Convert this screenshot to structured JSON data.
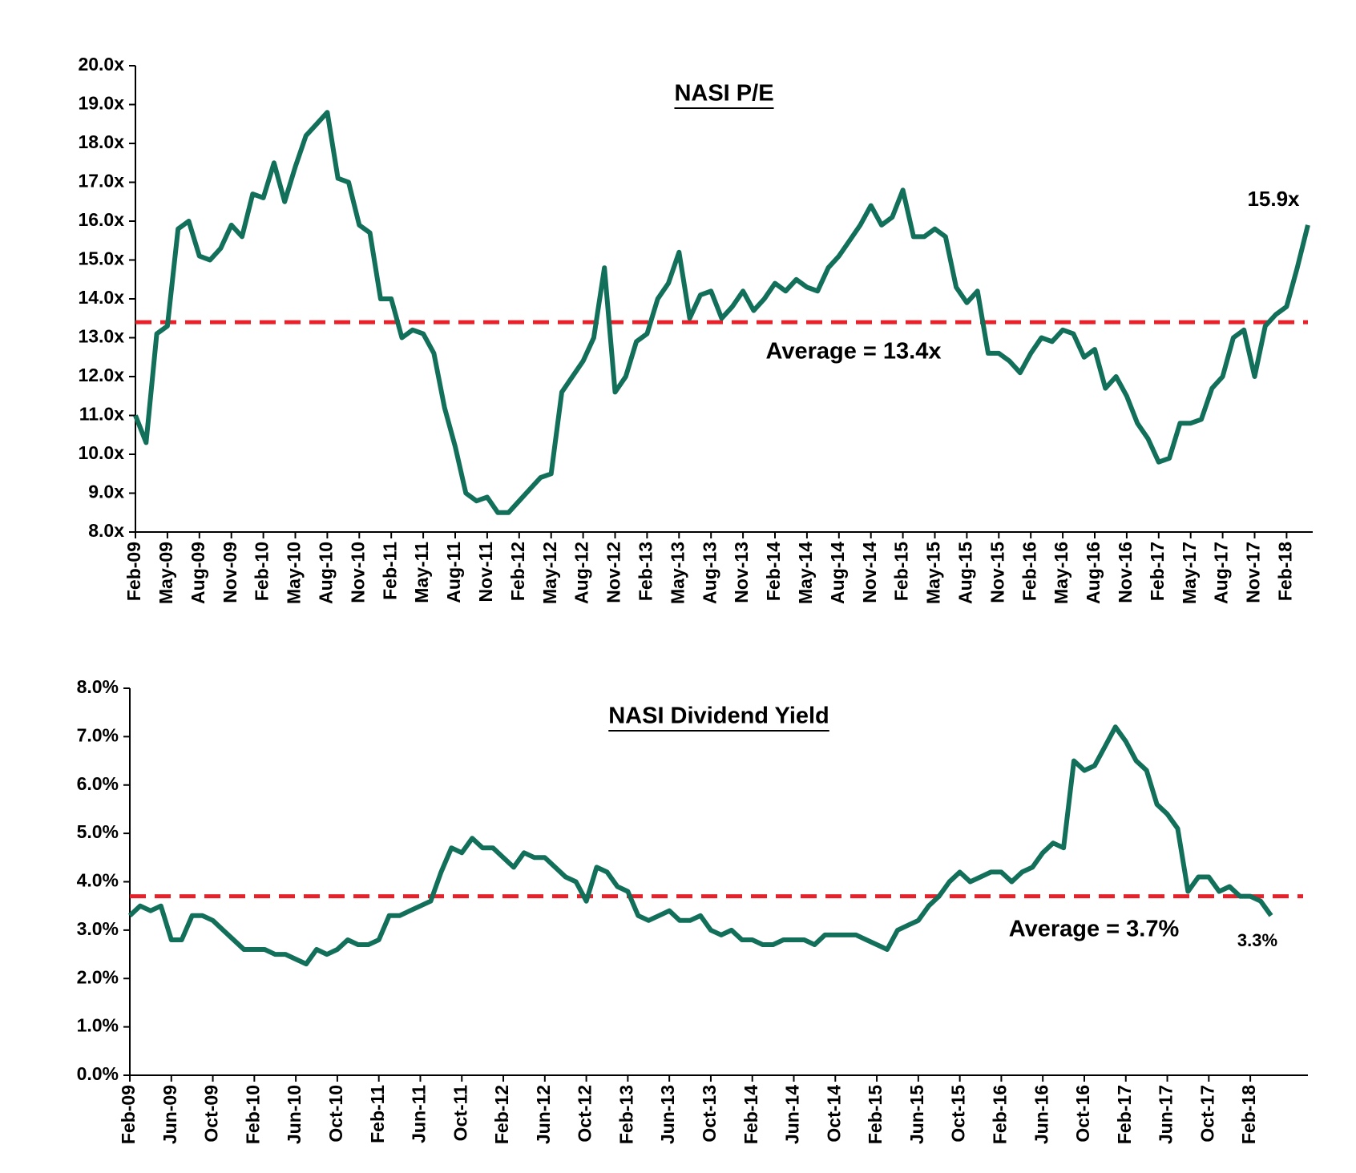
{
  "chart_data": [
    {
      "type": "line",
      "title": "NASI P/E",
      "categories": [
        "Feb-09",
        null,
        null,
        "May-09",
        null,
        null,
        "Aug-09",
        null,
        null,
        "Nov-09",
        null,
        null,
        "Feb-10",
        null,
        null,
        "May-10",
        null,
        null,
        "Aug-10",
        null,
        null,
        "Nov-10",
        null,
        null,
        "Feb-11",
        null,
        null,
        "May-11",
        null,
        null,
        "Aug-11",
        null,
        null,
        "Nov-11",
        null,
        null,
        "Feb-12",
        null,
        null,
        "May-12",
        null,
        null,
        "Aug-12",
        null,
        null,
        "Nov-12",
        null,
        null,
        "Feb-13",
        null,
        null,
        "May-13",
        null,
        null,
        "Aug-13",
        null,
        null,
        "Nov-13",
        null,
        null,
        "Feb-14",
        null,
        null,
        "May-14",
        null,
        null,
        "Aug-14",
        null,
        null,
        "Nov-14",
        null,
        null,
        "Feb-15",
        null,
        null,
        "May-15",
        null,
        null,
        "Aug-15",
        null,
        null,
        "Nov-15",
        null,
        null,
        "Feb-16",
        null,
        null,
        "May-16",
        null,
        null,
        "Aug-16",
        null,
        null,
        "Nov-16",
        null,
        null,
        "Feb-17",
        null,
        null,
        "May-17",
        null,
        null,
        "Aug-17",
        null,
        null,
        "Nov-17",
        null,
        null,
        "Feb-18",
        null,
        null
      ],
      "series": [
        {
          "name": "NASI P/E",
          "color": "#12705a",
          "values": [
            11,
            10.3,
            13.1,
            13.3,
            15.8,
            16.0,
            15.1,
            15.0,
            15.3,
            15.9,
            15.6,
            16.7,
            16.6,
            17.5,
            16.5,
            17.4,
            18.2,
            18.5,
            18.8,
            17.1,
            17.0,
            15.9,
            15.7,
            14.0,
            14.0,
            13.0,
            13.2,
            13.1,
            12.6,
            11.2,
            10.2,
            9.0,
            8.8,
            8.9,
            8.5,
            8.5,
            8.8,
            9.1,
            9.4,
            9.5,
            11.6,
            12.0,
            12.4,
            13.0,
            14.8,
            11.6,
            12.0,
            12.9,
            13.1,
            14.0,
            14.4,
            15.2,
            13.5,
            14.1,
            14.2,
            13.5,
            13.8,
            14.2,
            13.7,
            14.0,
            14.4,
            14.2,
            14.5,
            14.3,
            14.2,
            14.8,
            15.1,
            15.5,
            15.9,
            16.4,
            15.9,
            16.1,
            16.8,
            15.6,
            15.6,
            15.8,
            15.6,
            14.3,
            13.9,
            14.2,
            12.6,
            12.6,
            12.4,
            12.1,
            12.6,
            13.0,
            12.9,
            13.2,
            13.1,
            12.5,
            12.7,
            11.7,
            12.0,
            11.5,
            10.8,
            10.4,
            9.8,
            9.9,
            10.8,
            10.8,
            10.9,
            11.7,
            12.0,
            13.0,
            13.2,
            12.0,
            13.3,
            13.6,
            13.8,
            14.8,
            15.9
          ]
        }
      ],
      "average": {
        "value": 13.4,
        "label": "Average = 13.4x",
        "color": "#e8202a"
      },
      "end_label": "15.9x",
      "ylim": [
        8,
        20
      ],
      "yticks": [
        {
          "value": 8,
          "label": "8.0x"
        },
        {
          "value": 9,
          "label": "9.0x"
        },
        {
          "value": 10,
          "label": "10.0x"
        },
        {
          "value": 11,
          "label": "11.0x"
        },
        {
          "value": 12,
          "label": "12.0x"
        },
        {
          "value": 13,
          "label": "13.0x"
        },
        {
          "value": 14,
          "label": "14.0x"
        },
        {
          "value": 15,
          "label": "15.0x"
        },
        {
          "value": 16,
          "label": "16.0x"
        },
        {
          "value": 17,
          "label": "17.0x"
        },
        {
          "value": 18,
          "label": "18.0x"
        },
        {
          "value": 19,
          "label": "19.0x"
        },
        {
          "value": 20,
          "label": "20.0x"
        }
      ],
      "grid": false
    },
    {
      "type": "line",
      "title": "NASI Dividend Yield",
      "categories": [
        "Feb-09",
        null,
        null,
        null,
        "Jun-09",
        null,
        null,
        null,
        "Oct-09",
        null,
        null,
        null,
        "Feb-10",
        null,
        null,
        null,
        "Jun-10",
        null,
        null,
        null,
        "Oct-10",
        null,
        null,
        null,
        "Feb-11",
        null,
        null,
        null,
        "Jun-11",
        null,
        null,
        null,
        "Oct-11",
        null,
        null,
        null,
        "Feb-12",
        null,
        null,
        null,
        "Jun-12",
        null,
        null,
        null,
        "Oct-12",
        null,
        null,
        null,
        "Feb-13",
        null,
        null,
        null,
        "Jun-13",
        null,
        null,
        null,
        "Oct-13",
        null,
        null,
        null,
        "Feb-14",
        null,
        null,
        null,
        "Jun-14",
        null,
        null,
        null,
        "Oct-14",
        null,
        null,
        null,
        "Feb-15",
        null,
        null,
        null,
        "Jun-15",
        null,
        null,
        null,
        "Oct-15",
        null,
        null,
        null,
        "Feb-16",
        null,
        null,
        null,
        "Jun-16",
        null,
        null,
        null,
        "Oct-16",
        null,
        null,
        null,
        "Feb-17",
        null,
        null,
        null,
        "Jun-17",
        null,
        null,
        null,
        "Oct-17",
        null,
        null,
        null,
        "Feb-18",
        null,
        null
      ],
      "series": [
        {
          "name": "NASI Dividend Yield",
          "color": "#12705a",
          "values": [
            3.3,
            3.5,
            3.4,
            3.5,
            2.8,
            2.8,
            3.3,
            3.3,
            3.2,
            3.0,
            2.8,
            2.6,
            2.6,
            2.6,
            2.5,
            2.5,
            2.4,
            2.3,
            2.6,
            2.5,
            2.6,
            2.8,
            2.7,
            2.7,
            2.8,
            3.3,
            3.3,
            3.4,
            3.5,
            3.6,
            4.2,
            4.7,
            4.6,
            4.9,
            4.7,
            4.7,
            4.5,
            4.3,
            4.6,
            4.5,
            4.5,
            4.3,
            4.1,
            4.0,
            3.6,
            4.3,
            4.2,
            3.9,
            3.8,
            3.3,
            3.2,
            3.3,
            3.4,
            3.2,
            3.2,
            3.3,
            3.0,
            2.9,
            3.0,
            2.8,
            2.8,
            2.7,
            2.7,
            2.8,
            2.8,
            2.8,
            2.7,
            2.9,
            2.9,
            2.9,
            2.9,
            2.8,
            2.7,
            2.6,
            3.0,
            3.1,
            3.2,
            3.5,
            3.7,
            4.0,
            4.2,
            4.0,
            4.1,
            4.2,
            4.2,
            4.0,
            4.2,
            4.3,
            4.6,
            4.8,
            4.7,
            6.5,
            6.3,
            6.4,
            6.8,
            7.2,
            6.9,
            6.5,
            6.3,
            5.6,
            5.4,
            5.1,
            3.8,
            4.1,
            4.1,
            3.8,
            3.9,
            3.7,
            3.7,
            3.6,
            3.3
          ]
        }
      ],
      "average": {
        "value": 3.7,
        "label": "Average = 3.7%",
        "color": "#e8202a"
      },
      "end_label": "3.3%",
      "ylim": [
        0,
        8
      ],
      "yticks": [
        {
          "value": 0,
          "label": "0.0%"
        },
        {
          "value": 1,
          "label": "1.0%"
        },
        {
          "value": 2,
          "label": "2.0%"
        },
        {
          "value": 3,
          "label": "3.0%"
        },
        {
          "value": 4,
          "label": "4.0%"
        },
        {
          "value": 5,
          "label": "5.0%"
        },
        {
          "value": 6,
          "label": "6.0%"
        },
        {
          "value": 7,
          "label": "7.0%"
        },
        {
          "value": 8,
          "label": "8.0%"
        }
      ],
      "grid": false
    }
  ]
}
